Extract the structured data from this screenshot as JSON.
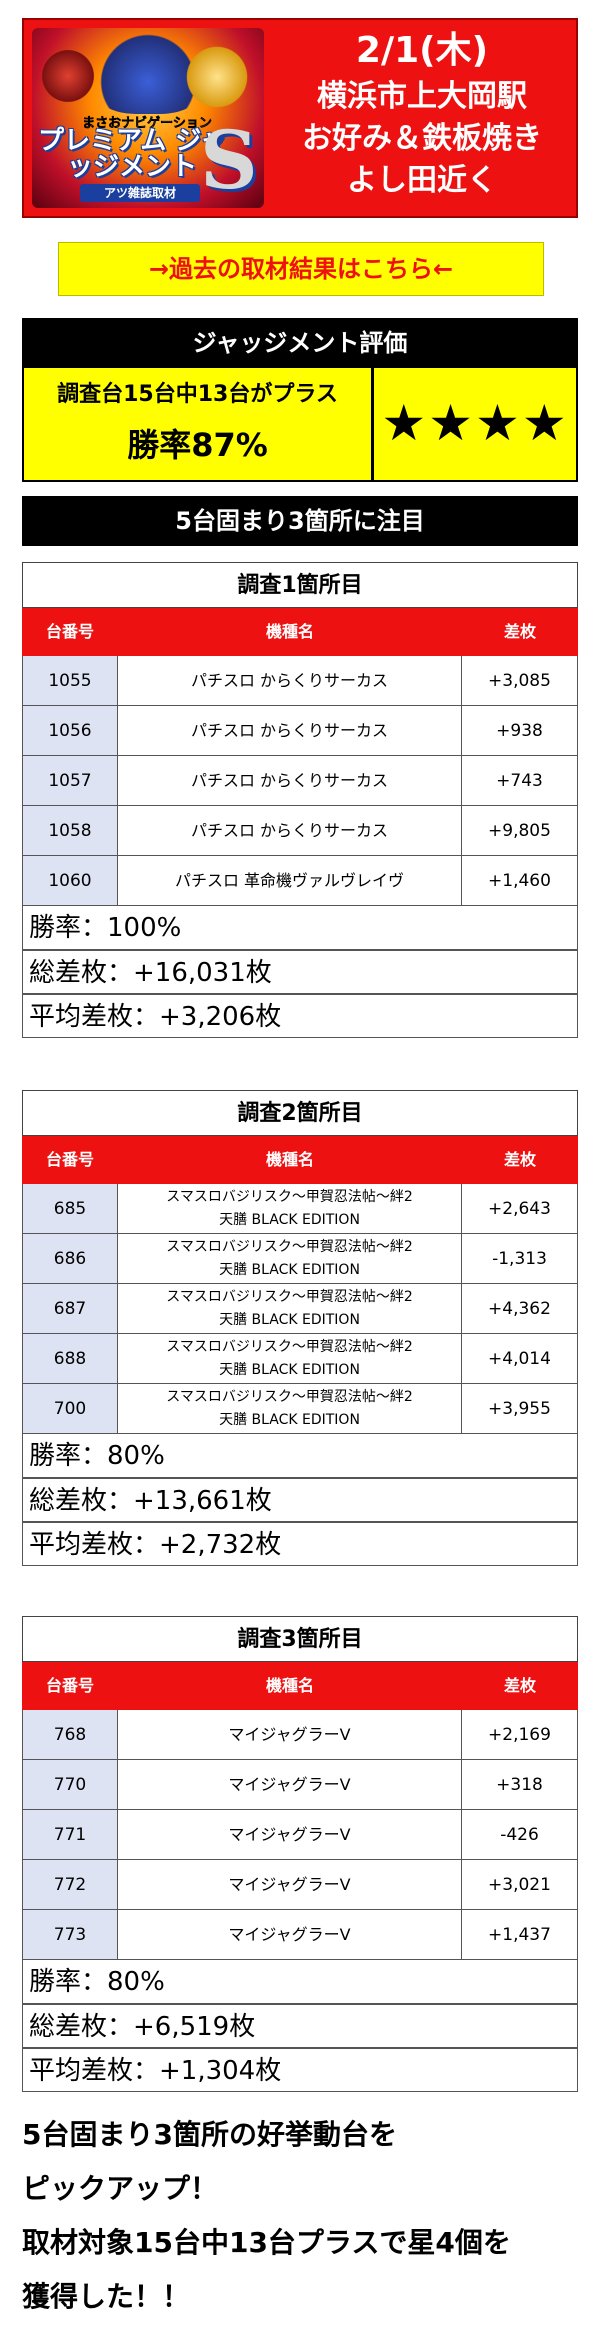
{
  "banner": {
    "logo_sub": "まさおナビゲーション",
    "logo_main": "プレミアム ジャッジメント",
    "logo_s": "S",
    "logo_tag": "アツ雑誌取材",
    "date": "2/1(木)",
    "lines": [
      "横浜市上大岡駅",
      "お好み＆鉄板焼き",
      "よし田近く"
    ]
  },
  "link": {
    "label": "→過去の取材結果はこちら←"
  },
  "judgment": {
    "title": "ジャッジメント評価",
    "summary": "調査台15台中13台がプラス",
    "win_rate": "勝率87%",
    "stars": "★★★★"
  },
  "focus": {
    "title": "5台固まり3箇所に注目"
  },
  "table_headers": {
    "number": "台番号",
    "machine": "機種名",
    "diff": "差枚"
  },
  "sections": [
    {
      "title": "調査1箇所目",
      "rows": [
        {
          "number": "1055",
          "machine": "パチスロ からくりサーカス",
          "machine2": "",
          "diff": "+3,085"
        },
        {
          "number": "1056",
          "machine": "パチスロ からくりサーカス",
          "machine2": "",
          "diff": "+938"
        },
        {
          "number": "1057",
          "machine": "パチスロ からくりサーカス",
          "machine2": "",
          "diff": "+743"
        },
        {
          "number": "1058",
          "machine": "パチスロ からくりサーカス",
          "machine2": "",
          "diff": "+9,805"
        },
        {
          "number": "1060",
          "machine": "パチスロ 革命機ヴァルヴレイヴ",
          "machine2": "",
          "diff": "+1,460"
        }
      ],
      "win_rate": "勝率：100%",
      "total": "総差枚：+16,031枚",
      "average": "平均差枚：+3,206枚"
    },
    {
      "title": "調査2箇所目",
      "rows": [
        {
          "number": "685",
          "machine": "スマスロバジリスク～甲賀忍法帖～絆2",
          "machine2": "天膳 BLACK EDITION",
          "diff": "+2,643"
        },
        {
          "number": "686",
          "machine": "スマスロバジリスク～甲賀忍法帖～絆2",
          "machine2": "天膳 BLACK EDITION",
          "diff": "-1,313"
        },
        {
          "number": "687",
          "machine": "スマスロバジリスク～甲賀忍法帖～絆2",
          "machine2": "天膳 BLACK EDITION",
          "diff": "+4,362"
        },
        {
          "number": "688",
          "machine": "スマスロバジリスク～甲賀忍法帖～絆2",
          "machine2": "天膳 BLACK EDITION",
          "diff": "+4,014"
        },
        {
          "number": "700",
          "machine": "スマスロバジリスク～甲賀忍法帖～絆2",
          "machine2": "天膳 BLACK EDITION",
          "diff": "+3,955"
        }
      ],
      "win_rate": "勝率：80%",
      "total": "総差枚：+13,661枚",
      "average": "平均差枚：+2,732枚"
    },
    {
      "title": "調査3箇所目",
      "rows": [
        {
          "number": "768",
          "machine": "マイジャグラーV",
          "machine2": "",
          "diff": "+2,169"
        },
        {
          "number": "770",
          "machine": "マイジャグラーV",
          "machine2": "",
          "diff": "+318"
        },
        {
          "number": "771",
          "machine": "マイジャグラーV",
          "machine2": "",
          "diff": "-426"
        },
        {
          "number": "772",
          "machine": "マイジャグラーV",
          "machine2": "",
          "diff": "+3,021"
        },
        {
          "number": "773",
          "machine": "マイジャグラーV",
          "machine2": "",
          "diff": "+1,437"
        }
      ],
      "win_rate": "勝率：80%",
      "total": "総差枚：+6,519枚",
      "average": "平均差枚：+1,304枚"
    }
  ],
  "footer": {
    "lines": [
      "5台固まり3箇所の好挙動台を",
      "ピックアップ！",
      "取材対象15台中13台プラスで星4個を",
      "獲得した！！"
    ]
  }
}
